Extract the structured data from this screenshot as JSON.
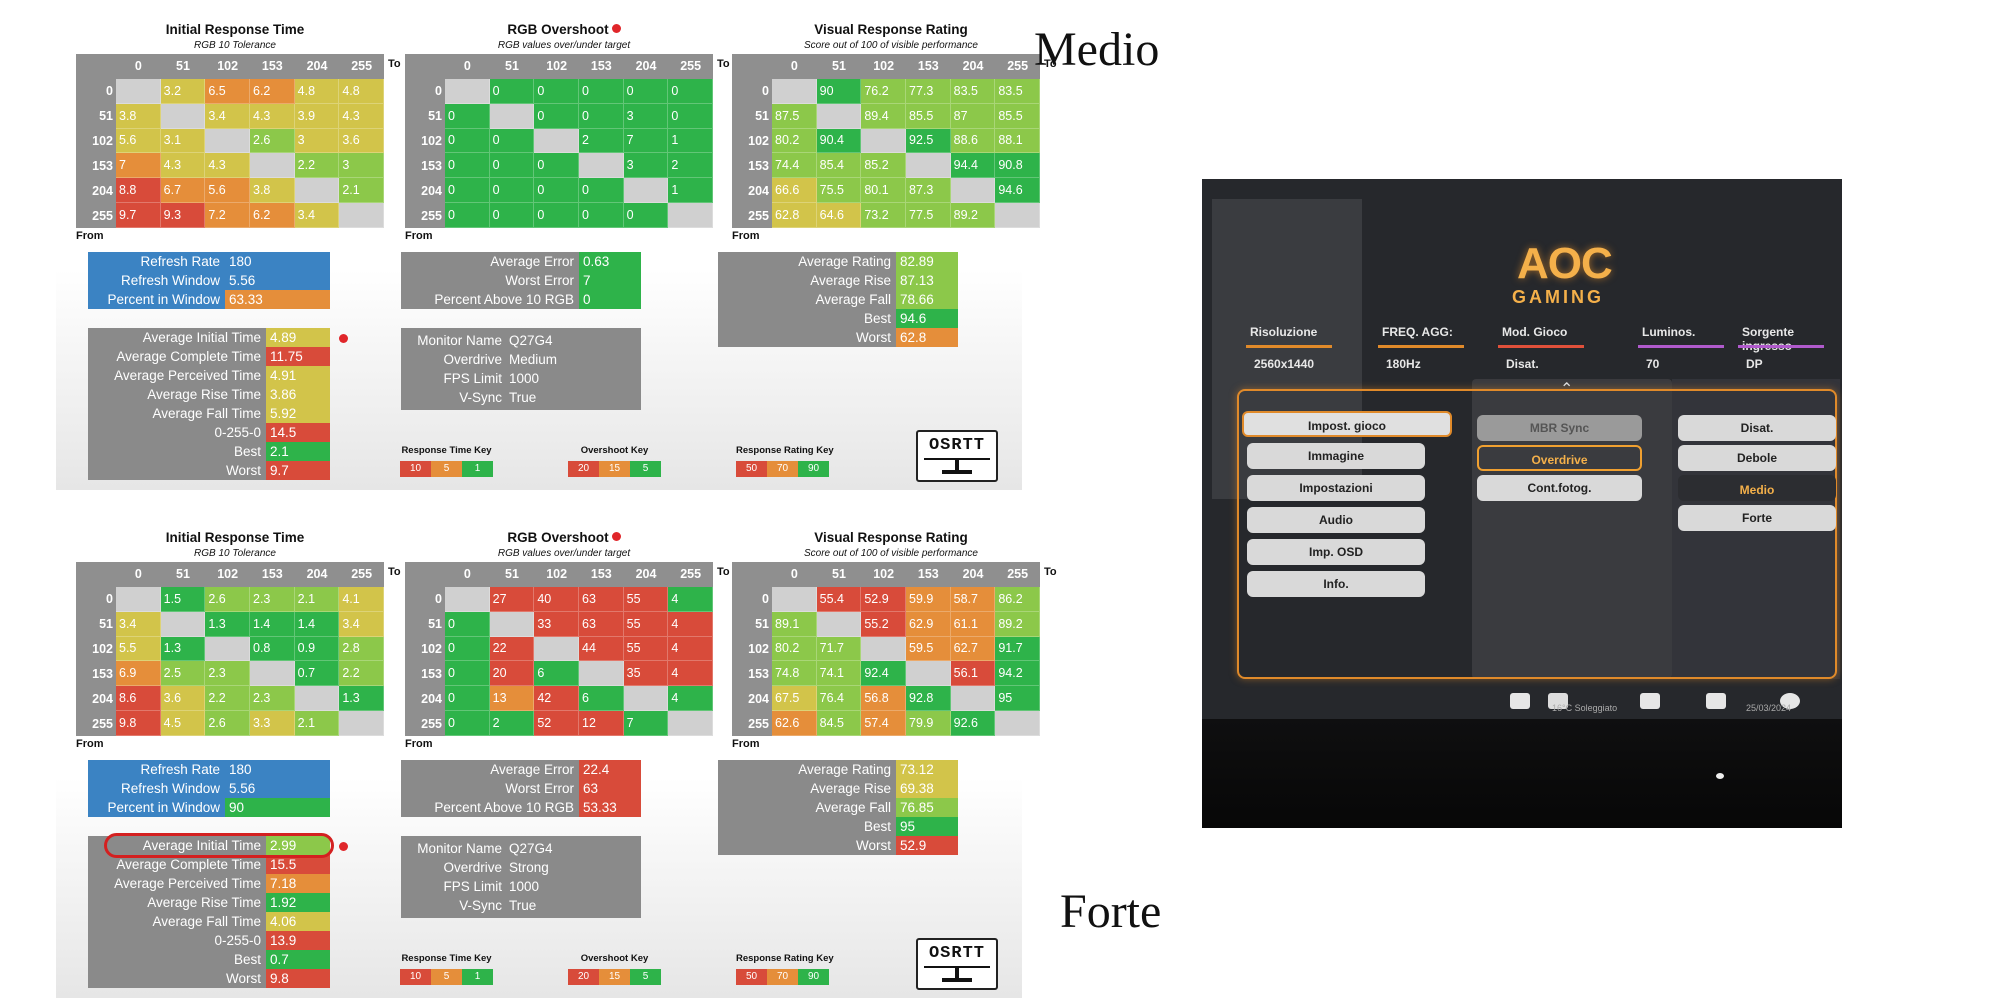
{
  "colors": {
    "red": "#d84b3a",
    "orange": "#e58e3a",
    "yellow": "#d2c44a",
    "lightgreen": "#8cc84a",
    "green": "#2eb34a",
    "blank": "#d0d0d0",
    "blue": "#3b83c3"
  },
  "axis": {
    "to": "To",
    "from": "From",
    "labels": [
      "0",
      "51",
      "102",
      "153",
      "204",
      "255"
    ]
  },
  "titles": {
    "irt": "Initial Response Time",
    "irt_sub": "RGB 10 Tolerance",
    "ovs": "RGB Overshoot",
    "ovs_sub": "RGB values over/under target",
    "vrr": "Visual Response Rating",
    "vrr_sub": "Score out of 100 of visible performance"
  },
  "keys": {
    "response": {
      "title": "Response Time Key",
      "values": [
        "10",
        "5",
        "1"
      ]
    },
    "overshoot": {
      "title": "Overshoot Key",
      "values": [
        "20",
        "15",
        "5"
      ]
    },
    "rating": {
      "title": "Response Rating Key",
      "values": [
        "50",
        "70",
        "90"
      ]
    }
  },
  "logo_text": "OSRTT",
  "panels": [
    {
      "label": "Medio",
      "irt": [
        [
          null,
          "3.2",
          "6.5",
          "6.2",
          "4.8",
          "4.8"
        ],
        [
          "3.8",
          null,
          "3.4",
          "4.3",
          "3.9",
          "4.3"
        ],
        [
          "5.6",
          "3.1",
          null,
          "2.6",
          "3",
          "3.6"
        ],
        [
          "7",
          "4.3",
          "4.3",
          null,
          "2.2",
          "3"
        ],
        [
          "8.8",
          "6.7",
          "5.6",
          "3.8",
          null,
          "2.1"
        ],
        [
          "9.7",
          "9.3",
          "7.2",
          "6.2",
          "3.4",
          null
        ]
      ],
      "irt_c": [
        [
          null,
          "y",
          "o",
          "o",
          "y",
          "y"
        ],
        [
          "y",
          null,
          "y",
          "y",
          "y",
          "y"
        ],
        [
          "y",
          "y",
          null,
          "lg",
          "y",
          "y"
        ],
        [
          "o",
          "y",
          "y",
          null,
          "lg",
          "lg"
        ],
        [
          "r",
          "o",
          "o",
          "y",
          null,
          "lg"
        ],
        [
          "r",
          "r",
          "o",
          "o",
          "y",
          null
        ]
      ],
      "ovs": [
        [
          null,
          "0",
          "0",
          "0",
          "0",
          "0"
        ],
        [
          "0",
          null,
          "0",
          "0",
          "3",
          "0"
        ],
        [
          "0",
          "0",
          null,
          "2",
          "7",
          "1"
        ],
        [
          "0",
          "0",
          "0",
          null,
          "3",
          "2"
        ],
        [
          "0",
          "0",
          "0",
          "0",
          null,
          "1"
        ],
        [
          "0",
          "0",
          "0",
          "0",
          "0",
          null
        ]
      ],
      "ovs_c": [
        [
          null,
          "g",
          "g",
          "g",
          "g",
          "g"
        ],
        [
          "g",
          null,
          "g",
          "g",
          "g",
          "g"
        ],
        [
          "g",
          "g",
          null,
          "g",
          "g",
          "g"
        ],
        [
          "g",
          "g",
          "g",
          null,
          "g",
          "g"
        ],
        [
          "g",
          "g",
          "g",
          "g",
          null,
          "g"
        ],
        [
          "g",
          "g",
          "g",
          "g",
          "g",
          null
        ]
      ],
      "vrr": [
        [
          null,
          "90",
          "76.2",
          "77.3",
          "83.5",
          "83.5"
        ],
        [
          "87.5",
          null,
          "89.4",
          "85.5",
          "87",
          "85.5"
        ],
        [
          "80.2",
          "90.4",
          null,
          "92.5",
          "88.6",
          "88.1"
        ],
        [
          "74.4",
          "85.4",
          "85.2",
          null,
          "94.4",
          "90.8"
        ],
        [
          "66.6",
          "75.5",
          "80.1",
          "87.3",
          null,
          "94.6"
        ],
        [
          "62.8",
          "64.6",
          "73.2",
          "77.5",
          "89.2",
          null
        ]
      ],
      "vrr_c": [
        [
          null,
          "g",
          "lg",
          "lg",
          "lg",
          "lg"
        ],
        [
          "lg",
          null,
          "lg",
          "lg",
          "lg",
          "lg"
        ],
        [
          "lg",
          "g",
          null,
          "g",
          "lg",
          "lg"
        ],
        [
          "lg",
          "lg",
          "lg",
          null,
          "g",
          "g"
        ],
        [
          "y",
          "lg",
          "lg",
          "lg",
          null,
          "g"
        ],
        [
          "y",
          "y",
          "lg",
          "lg",
          "lg",
          null
        ]
      ],
      "refresh": [
        {
          "k": "Refresh Rate",
          "v": "180"
        },
        {
          "k": "Refresh Window",
          "v": "5.56"
        },
        {
          "k": "Percent in Window",
          "v": "63.33",
          "c": "o"
        }
      ],
      "times": [
        {
          "k": "Average Initial Time",
          "v": "4.89",
          "c": "y"
        },
        {
          "k": "Average Complete Time",
          "v": "11.75",
          "c": "r"
        },
        {
          "k": "Average Perceived Time",
          "v": "4.91",
          "c": "y"
        },
        {
          "k": "Average Rise Time",
          "v": "3.86",
          "c": "y"
        },
        {
          "k": "Average Fall Time",
          "v": "5.92",
          "c": "y"
        },
        {
          "k": "0-255-0",
          "v": "14.5",
          "c": "r"
        },
        {
          "k": "Best",
          "v": "2.1",
          "c": "g"
        },
        {
          "k": "Worst",
          "v": "9.7",
          "c": "r"
        }
      ],
      "errors": [
        {
          "k": "Average Error",
          "v": "0.63",
          "c": "g"
        },
        {
          "k": "Worst Error",
          "v": "7",
          "c": "g"
        },
        {
          "k": "Percent Above 10 RGB",
          "v": "0",
          "c": "g"
        }
      ],
      "monitor": [
        {
          "k": "Monitor Name",
          "v": "Q27G4"
        },
        {
          "k": "Overdrive",
          "v": "Medium"
        },
        {
          "k": "FPS Limit",
          "v": "1000"
        },
        {
          "k": "V-Sync",
          "v": "True"
        }
      ],
      "ratings": [
        {
          "k": "Average Rating",
          "v": "82.89",
          "c": "lg"
        },
        {
          "k": "Average Rise",
          "v": "87.13",
          "c": "lg"
        },
        {
          "k": "Average Fall",
          "v": "78.66",
          "c": "lg"
        },
        {
          "k": "Best",
          "v": "94.6",
          "c": "g"
        },
        {
          "k": "Worst",
          "v": "62.8",
          "c": "o"
        }
      ]
    },
    {
      "label": "Forte",
      "irt": [
        [
          null,
          "1.5",
          "2.6",
          "2.3",
          "2.1",
          "4.1"
        ],
        [
          "3.4",
          null,
          "1.3",
          "1.4",
          "1.4",
          "3.4"
        ],
        [
          "5.5",
          "1.3",
          null,
          "0.8",
          "0.9",
          "2.8"
        ],
        [
          "6.9",
          "2.5",
          "2.3",
          null,
          "0.7",
          "2.2"
        ],
        [
          "8.6",
          "3.6",
          "2.2",
          "2.3",
          null,
          "1.3"
        ],
        [
          "9.8",
          "4.5",
          "2.6",
          "3.3",
          "2.1",
          null
        ]
      ],
      "irt_c": [
        [
          null,
          "g",
          "lg",
          "lg",
          "lg",
          "y"
        ],
        [
          "y",
          null,
          "g",
          "g",
          "g",
          "y"
        ],
        [
          "y",
          "g",
          null,
          "g",
          "g",
          "lg"
        ],
        [
          "o",
          "lg",
          "lg",
          null,
          "g",
          "lg"
        ],
        [
          "r",
          "y",
          "lg",
          "lg",
          null,
          "g"
        ],
        [
          "r",
          "y",
          "lg",
          "y",
          "lg",
          null
        ]
      ],
      "ovs": [
        [
          null,
          "27",
          "40",
          "63",
          "55",
          "4"
        ],
        [
          "0",
          null,
          "33",
          "63",
          "55",
          "4"
        ],
        [
          "0",
          "22",
          null,
          "44",
          "55",
          "4"
        ],
        [
          "0",
          "20",
          "6",
          null,
          "35",
          "4"
        ],
        [
          "0",
          "13",
          "42",
          "6",
          null,
          "4"
        ],
        [
          "0",
          "2",
          "52",
          "12",
          "7",
          null
        ]
      ],
      "ovs_c": [
        [
          null,
          "r",
          "r",
          "r",
          "r",
          "g"
        ],
        [
          "g",
          null,
          "r",
          "r",
          "r",
          "r"
        ],
        [
          "g",
          "r",
          null,
          "r",
          "r",
          "r"
        ],
        [
          "g",
          "r",
          "g",
          null,
          "r",
          "r"
        ],
        [
          "g",
          "o",
          "r",
          "g",
          null,
          "g"
        ],
        [
          "g",
          "g",
          "r",
          "r",
          "g",
          null
        ]
      ],
      "vrr": [
        [
          null,
          "55.4",
          "52.9",
          "59.9",
          "58.7",
          "86.2"
        ],
        [
          "89.1",
          null,
          "55.2",
          "62.9",
          "61.1",
          "89.2"
        ],
        [
          "80.2",
          "71.7",
          null,
          "59.5",
          "62.7",
          "91.7"
        ],
        [
          "74.8",
          "74.1",
          "92.4",
          null,
          "56.1",
          "94.2"
        ],
        [
          "67.5",
          "76.4",
          "56.8",
          "92.8",
          null,
          "95"
        ],
        [
          "62.6",
          "84.5",
          "57.4",
          "79.9",
          "92.6",
          null
        ]
      ],
      "vrr_c": [
        [
          null,
          "r",
          "r",
          "o",
          "o",
          "lg"
        ],
        [
          "lg",
          null,
          "r",
          "o",
          "o",
          "lg"
        ],
        [
          "lg",
          "lg",
          null,
          "o",
          "o",
          "g"
        ],
        [
          "lg",
          "lg",
          "g",
          null,
          "r",
          "g"
        ],
        [
          "y",
          "lg",
          "o",
          "g",
          null,
          "g"
        ],
        [
          "o",
          "lg",
          "o",
          "lg",
          "g",
          null
        ]
      ],
      "refresh": [
        {
          "k": "Refresh Rate",
          "v": "180"
        },
        {
          "k": "Refresh Window",
          "v": "5.56"
        },
        {
          "k": "Percent in Window",
          "v": "90",
          "c": "g"
        }
      ],
      "times": [
        {
          "k": "Average Initial Time",
          "v": "2.99",
          "c": "lg"
        },
        {
          "k": "Average Complete Time",
          "v": "15.5",
          "c": "r"
        },
        {
          "k": "Average Perceived Time",
          "v": "7.18",
          "c": "o"
        },
        {
          "k": "Average Rise Time",
          "v": "1.92",
          "c": "g"
        },
        {
          "k": "Average Fall Time",
          "v": "4.06",
          "c": "y"
        },
        {
          "k": "0-255-0",
          "v": "13.9",
          "c": "r"
        },
        {
          "k": "Best",
          "v": "0.7",
          "c": "g"
        },
        {
          "k": "Worst",
          "v": "9.8",
          "c": "r"
        }
      ],
      "errors": [
        {
          "k": "Average Error",
          "v": "22.4",
          "c": "r"
        },
        {
          "k": "Worst Error",
          "v": "63",
          "c": "r"
        },
        {
          "k": "Percent Above 10 RGB",
          "v": "53.33",
          "c": "r"
        }
      ],
      "monitor": [
        {
          "k": "Monitor Name",
          "v": "Q27G4"
        },
        {
          "k": "Overdrive",
          "v": "Strong"
        },
        {
          "k": "FPS Limit",
          "v": "1000"
        },
        {
          "k": "V-Sync",
          "v": "True"
        }
      ],
      "ratings": [
        {
          "k": "Average Rating",
          "v": "73.12",
          "c": "y"
        },
        {
          "k": "Average Rise",
          "v": "69.38",
          "c": "y"
        },
        {
          "k": "Average Fall",
          "v": "76.85",
          "c": "lg"
        },
        {
          "k": "Best",
          "v": "95",
          "c": "g"
        },
        {
          "k": "Worst",
          "v": "52.9",
          "c": "r"
        }
      ]
    }
  ],
  "osd": {
    "brand": "AOC",
    "brand_sub": "GAMING",
    "header": [
      {
        "label": "Risoluzione",
        "value": "2560x1440",
        "color": "#e08a2a"
      },
      {
        "label": "FREQ. AGG:",
        "value": "180Hz",
        "color": "#e08a2a"
      },
      {
        "label": "Mod. Gioco",
        "value": "Disat.",
        "color": "#e0503a"
      },
      {
        "label": "Luminos.",
        "value": "70",
        "color": "#b05acc"
      },
      {
        "label": "Sorgente ingresso",
        "value": "DP",
        "color": "#b05acc"
      }
    ],
    "menu": [
      "Impost. gioco",
      "Immagine",
      "Impostazioni",
      "Audio",
      "Imp. OSD",
      "Info."
    ],
    "submenu": [
      "MBR Sync",
      "Overdrive",
      "Cont.fotog."
    ],
    "options": [
      "Disat.",
      "Debole",
      "Medio",
      "Forte"
    ],
    "taskbar_text": "16°C Soleggiato",
    "taskbar_date": "25/03/2024"
  }
}
